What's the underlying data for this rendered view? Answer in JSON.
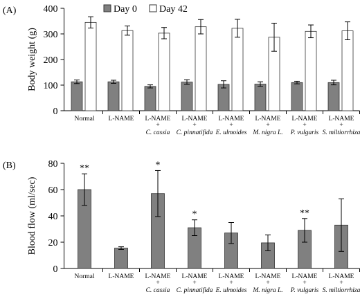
{
  "chart_data": [
    {
      "type": "bar",
      "panel_label": "(A)",
      "y_label": "Body weight (g)",
      "categories": [
        "Normal",
        "L-NAME",
        "L-NAME\n+\nC. cassia",
        "L-NAME\n+\nC. pinnatifida",
        "L-NAME\n+\nE. ulmoides",
        "L-NAME\n+\nM. nigra L.",
        "L-NAME\n+\nP. vulgaris",
        "L-NAME\n+\nS. miltiorrhiza"
      ],
      "series": [
        {
          "name": "Day 0",
          "color": "#808080",
          "values": [
            113,
            113,
            95,
            112,
            103,
            104,
            110,
            110
          ],
          "errors": [
            7,
            6,
            6,
            9,
            14,
            9,
            5,
            9
          ]
        },
        {
          "name": "Day 42",
          "color": "#ffffff",
          "values": [
            345,
            313,
            303,
            328,
            322,
            287,
            310,
            312
          ],
          "errors": [
            22,
            18,
            22,
            28,
            35,
            55,
            25,
            35
          ]
        }
      ],
      "ylim": [
        0,
        400
      ],
      "yticks": [
        0,
        100,
        200,
        300,
        400
      ],
      "legend": "top"
    },
    {
      "type": "bar",
      "panel_label": "(B)",
      "y_label": "Blood flow (ml/sec)",
      "categories": [
        "Normal",
        "L-NAME",
        "L-NAME\n+\nC. cassia",
        "L-NAME\n+\nC. pinnatifida",
        "L-NAME\n+\nE. ulmoides",
        "L-NAME\n+\nM. nigra L.",
        "L-NAME\n+\nP. vulgaris",
        "L-NAME\n+\nS. miltiorrhiza"
      ],
      "series": [
        {
          "color": "#808080",
          "values": [
            60,
            15.5,
            57,
            31,
            27,
            19.5,
            29,
            33
          ],
          "errors": [
            12,
            1,
            17.5,
            6,
            8,
            6,
            9,
            20
          ]
        }
      ],
      "significance": [
        "**",
        null,
        "*",
        "*",
        null,
        null,
        "**",
        null
      ],
      "ylim": [
        0,
        80
      ],
      "yticks": [
        0,
        20,
        40,
        60,
        80
      ]
    }
  ]
}
